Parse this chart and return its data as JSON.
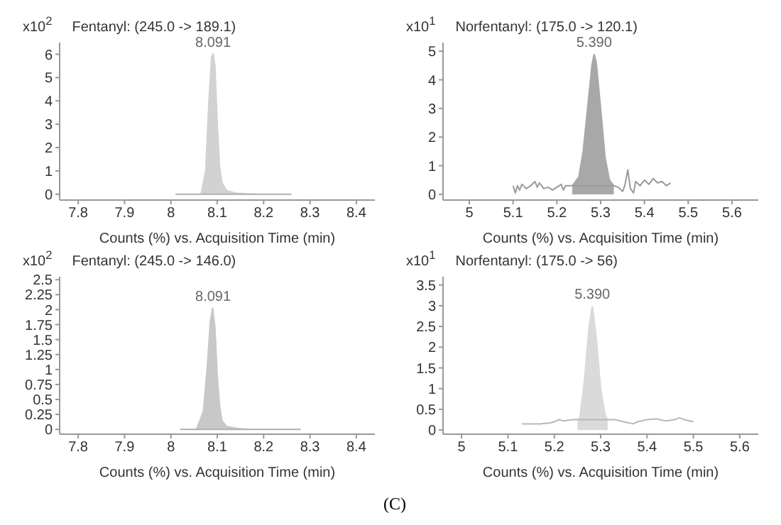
{
  "chart_data": [
    {
      "type": "area",
      "title": "Fentanyl: (245.0 -> 189.1)",
      "ylabel": "x10$^{2}$",
      "xlabel": "Counts (%) vs. Acquisition Time (min)",
      "xlim": [
        7.76,
        8.44
      ],
      "xticks": [
        7.8,
        7.9,
        8,
        8.1,
        8.2,
        8.3,
        8.4
      ],
      "ylim": [
        -0.25,
        6.5
      ],
      "yticks": [
        0,
        1,
        2,
        3,
        4,
        5,
        6
      ],
      "annotations": [
        {
          "text": "8.091",
          "x": 8.091,
          "y": 6
        }
      ],
      "series": [
        {
          "type": "line",
          "color": "#b0b0b0",
          "x": [
            8.01,
            8.26
          ],
          "values": [
            0,
            0
          ]
        },
        {
          "color": "#d2d2d2",
          "x": [
            8.065,
            8.075,
            8.082,
            8.088,
            8.091,
            8.095,
            8.1,
            8.105,
            8.11,
            8.12,
            8.14,
            8.16,
            8.185
          ],
          "values": [
            0,
            1,
            4,
            5.9,
            6,
            5.5,
            3,
            1.2,
            0.5,
            0.15,
            0.05,
            0.02,
            0
          ]
        }
      ]
    },
    {
      "type": "area",
      "title": "Norfentanyl: (175.0 -> 120.1)",
      "ylabel": "x10$^{1}$",
      "xlabel": "Counts (%) vs. Acquisition Time (min)",
      "xlim": [
        4.94,
        5.66
      ],
      "xticks": [
        5,
        5.1,
        5.2,
        5.3,
        5.4,
        5.5,
        5.6
      ],
      "ylim": [
        -0.2,
        5.3
      ],
      "yticks": [
        0,
        1,
        2,
        3,
        4,
        5
      ],
      "annotations": [
        {
          "text": "5.390",
          "x": 5.285,
          "y": 4.9
        }
      ],
      "series": [
        {
          "type": "line",
          "color": "#9a9a9a",
          "x": [
            5.1,
            5.105,
            5.11,
            5.115,
            5.12,
            5.13,
            5.14,
            5.15,
            5.155,
            5.16,
            5.17,
            5.18,
            5.19,
            5.2,
            5.21,
            5.215,
            5.22,
            5.23,
            5.235,
            5.33,
            5.34,
            5.35,
            5.355,
            5.362,
            5.368,
            5.375,
            5.38,
            5.39,
            5.4,
            5.41,
            5.42,
            5.43,
            5.44,
            5.45,
            5.46
          ],
          "values": [
            0.3,
            0.05,
            0.3,
            0.15,
            0.35,
            0.2,
            0.3,
            0.45,
            0.25,
            0.4,
            0.2,
            0.25,
            0.15,
            0.25,
            0.35,
            0.15,
            0.3,
            0.3,
            0.3,
            0.3,
            0.25,
            0.1,
            0.3,
            0.85,
            0.2,
            0.05,
            0.45,
            0.3,
            0.5,
            0.35,
            0.55,
            0.4,
            0.45,
            0.3,
            0.4
          ]
        },
        {
          "color": "#a8a8a8",
          "x": [
            5.235,
            5.25,
            5.26,
            5.27,
            5.28,
            5.285,
            5.29,
            5.3,
            5.31,
            5.32,
            5.33
          ],
          "values": [
            0.3,
            0.6,
            1.5,
            3,
            4.5,
            4.9,
            4.6,
            3,
            1.3,
            0.5,
            0.3
          ]
        }
      ]
    },
    {
      "type": "area",
      "title": "Fentanyl: (245.0 -> 146.0)",
      "ylabel": "x10$^{2}$",
      "xlabel": "Counts (%) vs. Acquisition Time (min)",
      "xlim": [
        7.76,
        8.44
      ],
      "xticks": [
        7.8,
        7.9,
        8,
        8.1,
        8.2,
        8.3,
        8.4
      ],
      "ylim": [
        -0.08,
        2.55
      ],
      "yticks": [
        0,
        0.25,
        0.5,
        0.75,
        1,
        1.25,
        1.5,
        1.75,
        2,
        2.25,
        2.5
      ],
      "annotations": [
        {
          "text": "8.091",
          "x": 8.091,
          "y": 2.03
        }
      ],
      "series": [
        {
          "type": "line",
          "color": "#b0b0b0",
          "x": [
            8.02,
            8.28
          ],
          "values": [
            0,
            0
          ]
        },
        {
          "color": "#c8c8c8",
          "x": [
            8.055,
            8.07,
            8.078,
            8.085,
            8.09,
            8.095,
            8.1,
            8.105,
            8.11,
            8.12,
            8.14,
            8.165
          ],
          "values": [
            0,
            0.3,
            1,
            1.8,
            2.03,
            1.7,
            0.9,
            0.4,
            0.15,
            0.05,
            0.02,
            0
          ]
        }
      ]
    },
    {
      "type": "area",
      "title": "Norfentanyl: (175.0 -> 56)",
      "ylabel": "x10$^{1}$",
      "xlabel": "Counts (%) vs. Acquisition Time (min)",
      "xlim": [
        4.96,
        5.64
      ],
      "xticks": [
        5,
        5.1,
        5.2,
        5.3,
        5.4,
        5.5,
        5.6
      ],
      "ylim": [
        -0.1,
        3.7
      ],
      "yticks": [
        0,
        0.5,
        1,
        1.5,
        2,
        2.5,
        3,
        3.5
      ],
      "annotations": [
        {
          "text": "5.390",
          "x": 5.282,
          "y": 3
        },
        "(C)"
      ],
      "series": [
        {
          "type": "line",
          "color": "#b8b8b8",
          "x": [
            5.13,
            5.15,
            5.17,
            5.19,
            5.2,
            5.21,
            5.22,
            5.24,
            5.25,
            5.315,
            5.33,
            5.35,
            5.37,
            5.38,
            5.4,
            5.42,
            5.44,
            5.46,
            5.47,
            5.48,
            5.5
          ],
          "values": [
            0.15,
            0.15,
            0.15,
            0.17,
            0.2,
            0.25,
            0.22,
            0.25,
            0.25,
            0.25,
            0.25,
            0.2,
            0.15,
            0.2,
            0.25,
            0.27,
            0.22,
            0.25,
            0.3,
            0.25,
            0.2
          ]
        },
        {
          "color": "#dadada",
          "x": [
            5.25,
            5.255,
            5.265,
            5.275,
            5.282,
            5.29,
            5.3,
            5.31,
            5.315
          ],
          "values": [
            0.25,
            0.3,
            1.2,
            2.5,
            3,
            2.3,
            1,
            0.35,
            0.25
          ]
        }
      ]
    }
  ]
}
